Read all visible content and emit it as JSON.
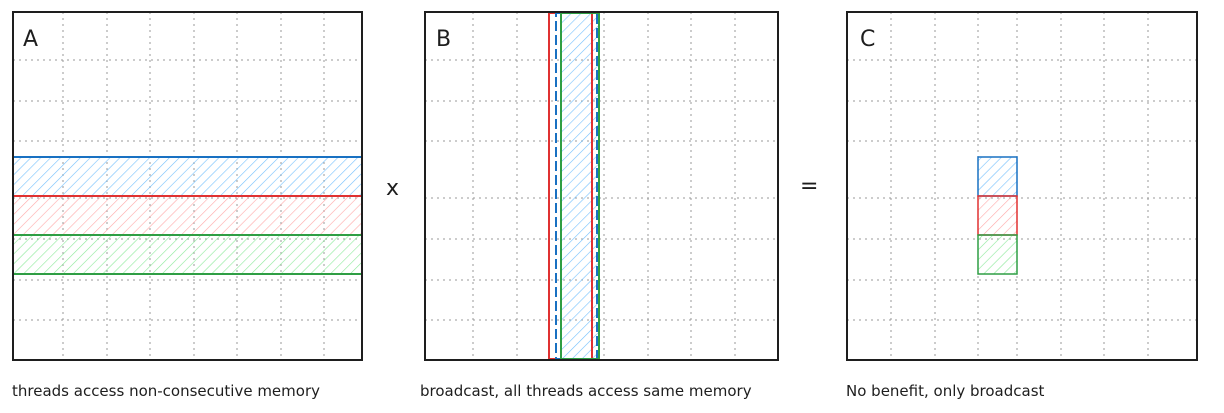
{
  "panels": [
    {
      "label": "A",
      "caption": "threads access non-consecutive memory"
    },
    {
      "label": "B",
      "caption": "broadcast, all threads access same memory"
    },
    {
      "label": "C",
      "caption": "No benefit, only broadcast"
    }
  ],
  "operators": {
    "multiply": "x",
    "equals": "="
  },
  "colors": {
    "blue": "#1971c2",
    "blue_fill": "#a5d8ff",
    "red": "#e03131",
    "red_fill": "#ffc9c9",
    "green": "#2f9e44",
    "green_fill": "#b2f2bb",
    "grid": "#999999",
    "border": "#1e1e1e"
  }
}
